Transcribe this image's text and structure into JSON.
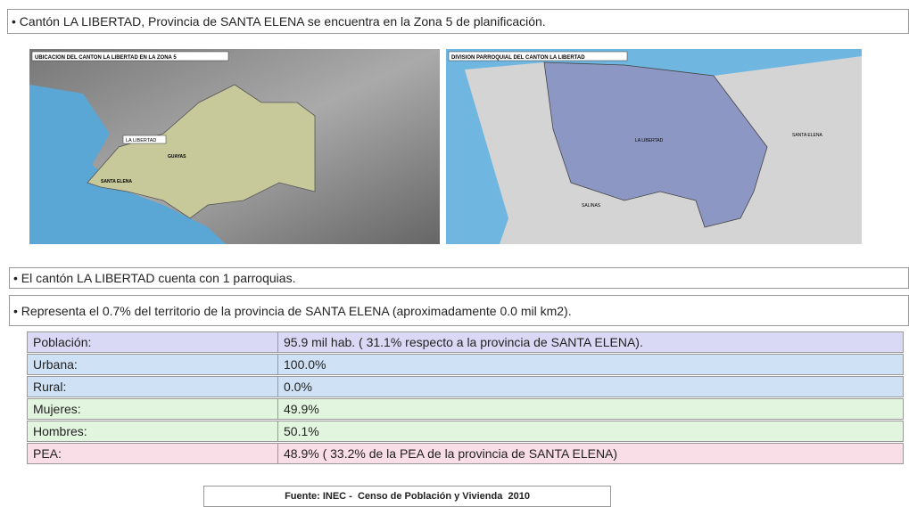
{
  "intro": "• Cantón LA LIBERTAD, Provincia de SANTA ELENA se encuentra en la Zona 5 de planificación.",
  "map_left": {
    "title": "UBICACION DEL CANTON LA LIBERTAD EN LA ZONA 5",
    "labels": [
      "LA LIBERTAD",
      "SANTA ELENA",
      "GUAYAS"
    ]
  },
  "map_right": {
    "title": "DIVISION PARROQUIAL DEL CANTON LA LIBERTAD",
    "labels": [
      "LA LIBERTAD",
      "SANTA ELENA",
      "SALINAS"
    ]
  },
  "parroquias": "• El cantón LA LIBERTAD cuenta con 1 parroquias.",
  "territorio": "• Representa el 0.7% del territorio de la provincia de SANTA ELENA (aproximadamente 0.0 mil km2).",
  "table": {
    "rows": [
      [
        "Población:",
        "95.9 mil hab. ( 31.1% respecto a la provincia de SANTA ELENA)."
      ],
      [
        "Urbana:",
        "100.0%"
      ],
      [
        "Rural:",
        "0.0%"
      ],
      [
        "Mujeres:",
        "49.9%"
      ],
      [
        "Hombres:",
        "50.1%"
      ],
      [
        "PEA:",
        "48.9% ( 33.2% de la PEA de la provincia de SANTA ELENA)"
      ]
    ]
  },
  "source": "Fuente: INEC -  Censo de Población y Vivienda  2010"
}
